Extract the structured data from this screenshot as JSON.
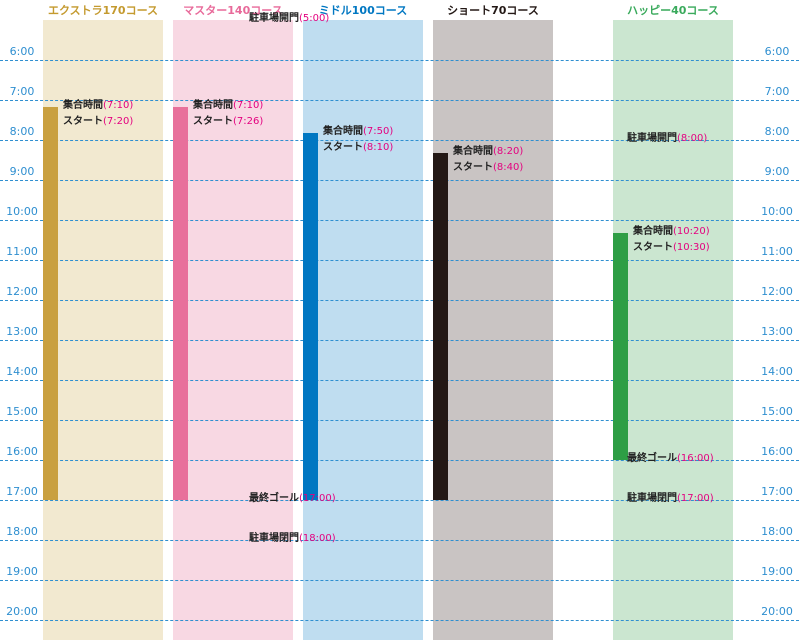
{
  "chart_data": {
    "type": "timeline",
    "courses": [
      {
        "name": "エクストラ170コース",
        "title_color": "#c49a2f",
        "band_color": "#f2e9d0",
        "bar_color": "#c9a040",
        "bar_start": "7:10",
        "bar_end": "17:00"
      },
      {
        "name": "マスター140コース",
        "title_color": "#e86a9a",
        "band_color": "#f8d8e3",
        "bar_color": "#e8709b",
        "bar_start": "7:10",
        "bar_end": "17:00"
      },
      {
        "name": "ミドル100コース",
        "title_color": "#0077c2",
        "band_color": "#bfddf0",
        "bar_color": "#0077c2",
        "bar_start": "7:50",
        "bar_end": "17:00"
      },
      {
        "name": "ショート70コース",
        "title_color": "#231815",
        "band_color": "#c9c4c3",
        "bar_color": "#231815",
        "bar_start": "8:20",
        "bar_end": "17:00"
      },
      {
        "name": "ハッピー40コース",
        "title_color": "#3aaa5c",
        "band_color": "#cbe6d0",
        "bar_color": "#2e9e45",
        "bar_start": "10:20",
        "bar_end": "16:00"
      }
    ],
    "hours": [
      "6:00",
      "7:00",
      "8:00",
      "9:00",
      "10:00",
      "11:00",
      "12:00",
      "13:00",
      "14:00",
      "15:00",
      "16:00",
      "17:00",
      "18:00",
      "19:00",
      "20:00"
    ],
    "annotations": [
      {
        "course": 0,
        "lines": [
          {
            "label": "集合時間",
            "time": "7:10"
          },
          {
            "label": "スタート",
            "time": "7:20"
          }
        ]
      },
      {
        "course": 1,
        "lines": [
          {
            "label": "集合時間",
            "time": "7:10"
          },
          {
            "label": "スタート",
            "time": "7:26"
          }
        ]
      },
      {
        "course": 2,
        "lines": [
          {
            "label": "集合時間",
            "time": "7:50"
          },
          {
            "label": "スタート",
            "time": "8:10"
          }
        ]
      },
      {
        "course": 3,
        "lines": [
          {
            "label": "集合時間",
            "time": "8:20"
          },
          {
            "label": "スタート",
            "time": "8:40"
          }
        ]
      },
      {
        "course": 4,
        "lines": [
          {
            "label": "集合時間",
            "time": "10:20"
          },
          {
            "label": "スタート",
            "time": "10:30"
          }
        ]
      }
    ],
    "notes": [
      {
        "label": "駐車場開門",
        "time": "5:00",
        "group": "main"
      },
      {
        "label": "最終ゴール",
        "time": "17:00",
        "group": "main"
      },
      {
        "label": "駐車場閉門",
        "time": "18:00",
        "group": "main"
      },
      {
        "label": "駐車場開門",
        "time": "8:00",
        "group": "happy"
      },
      {
        "label": "最終ゴール",
        "time": "16:00",
        "group": "happy"
      },
      {
        "label": "駐車場閉門",
        "time": "17:00",
        "group": "happy"
      }
    ]
  }
}
